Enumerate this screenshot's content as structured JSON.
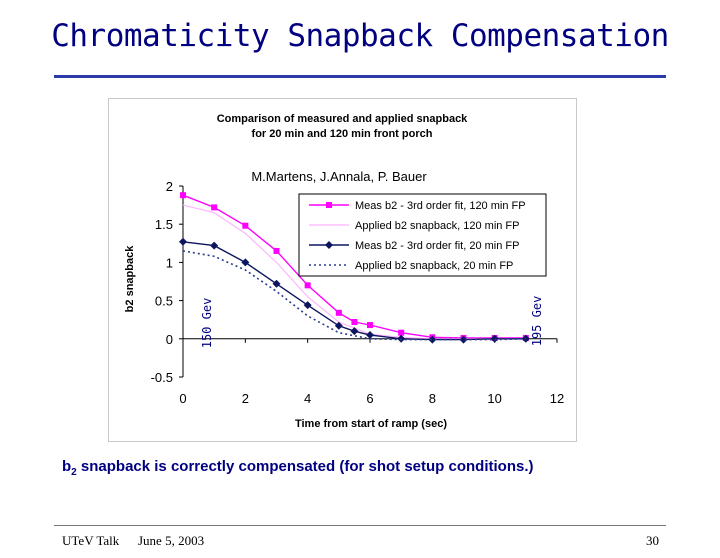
{
  "slide": {
    "title": "Chromaticity Snapback Compensation",
    "caption_prefix": "b",
    "caption_sub": "2",
    "caption_rest": " snapback is correctly compensated (for shot setup conditions.)",
    "footer_left": "UTeV Talk",
    "footer_date": "June 5, 2003",
    "page_number": "30"
  },
  "colors": {
    "title": "#000080",
    "meas_120": "#ff00ff",
    "applied_120": "#ffb4ff",
    "meas_20": "#0d1560",
    "applied_20": "#2a3c8c"
  },
  "chart_data": {
    "type": "line",
    "title_line1": "Comparison of measured and applied snapback",
    "title_line2": "for 20 min and 120 min front porch",
    "authors": "M.Martens, J.Annala, P. Bauer",
    "xlabel": "Time from start of ramp (sec)",
    "ylabel": "b2 snapback",
    "xlim": [
      0,
      12
    ],
    "ylim": [
      -0.5,
      2
    ],
    "xticks": [
      0,
      2,
      4,
      6,
      8,
      10,
      12
    ],
    "yticks": [
      -0.5,
      0,
      0.5,
      1,
      1.5,
      2
    ],
    "ytick_labels": [
      "-0.5",
      "0",
      "0.5",
      "1",
      "1.5",
      "2"
    ],
    "annotation_left": "150 Gev",
    "annotation_right": "195 Gev",
    "legend_position": "top-right",
    "series": [
      {
        "name": "Meas b2 - 3rd order fit, 120 min FP",
        "style": "solid-square",
        "x": [
          0,
          1,
          2,
          3,
          4,
          5,
          5.5,
          6,
          7,
          8,
          9,
          10,
          11
        ],
        "y": [
          1.88,
          1.72,
          1.48,
          1.15,
          0.7,
          0.34,
          0.22,
          0.18,
          0.08,
          0.02,
          0.01,
          0.01,
          0.01
        ]
      },
      {
        "name": "Applied b2 snapback, 120 min FP",
        "style": "solid-thin",
        "x": [
          0,
          1,
          2,
          3,
          4,
          5,
          6,
          7,
          8,
          9,
          10,
          11
        ],
        "y": [
          1.75,
          1.65,
          1.38,
          1.0,
          0.55,
          0.22,
          0.06,
          0.02,
          0.0,
          0.0,
          0.0,
          0.0
        ]
      },
      {
        "name": "Meas b2 - 3rd order fit, 20 min FP",
        "style": "solid-diamond",
        "x": [
          0,
          1,
          2,
          3,
          4,
          5,
          5.5,
          6,
          7,
          8,
          9,
          10,
          11
        ],
        "y": [
          1.27,
          1.22,
          1.0,
          0.72,
          0.44,
          0.17,
          0.1,
          0.05,
          0.0,
          -0.01,
          -0.01,
          0.0,
          0.0
        ]
      },
      {
        "name": "Applied b2 snapback, 20 min FP",
        "style": "dotted",
        "x": [
          0,
          1,
          2,
          3,
          4,
          5,
          6,
          7,
          8,
          9,
          10,
          11
        ],
        "y": [
          1.15,
          1.08,
          0.9,
          0.62,
          0.3,
          0.08,
          0.0,
          -0.01,
          -0.01,
          -0.01,
          -0.01,
          0.0
        ]
      }
    ]
  }
}
